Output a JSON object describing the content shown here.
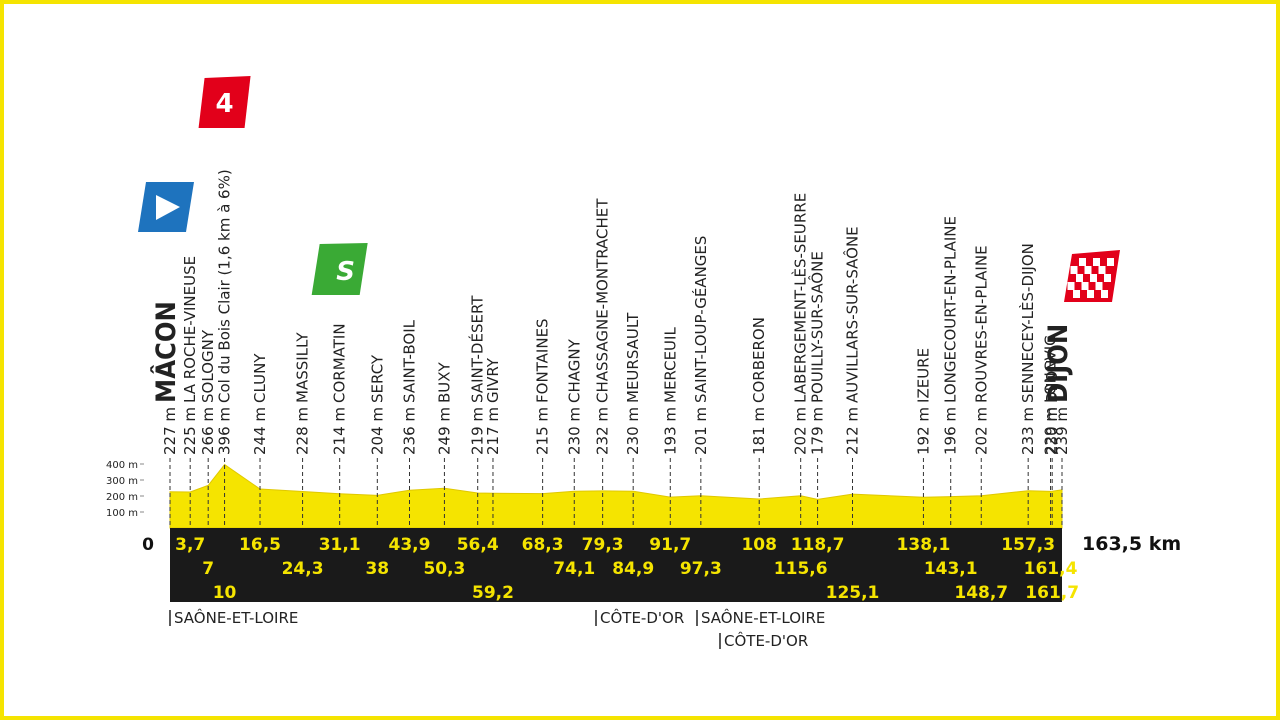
{
  "chart_data": {
    "type": "profile",
    "climb_badge": {
      "km": 10,
      "label": "4"
    },
    "sprint_badge": {
      "km": 31.1,
      "label": "S"
    },
    "ylim": [
      0,
      400
    ],
    "yticks": [
      {
        "value": 100,
        "label": "100 m"
      },
      {
        "value": 200,
        "label": "200 m"
      },
      {
        "value": 300,
        "label": "300 m"
      },
      {
        "value": 400,
        "label": "400 m"
      }
    ],
    "waypoints": [
      {
        "km": 0,
        "km_label": "0",
        "alt": 227,
        "alt_label": "227 m",
        "name": "MÂCON"
      },
      {
        "km": 3.7,
        "km_label": "3,7",
        "alt": 225,
        "alt_label": "225 m",
        "name": "LA ROCHE-VINEUSE"
      },
      {
        "km": 7,
        "km_label": "7",
        "alt": 266,
        "alt_label": "266 m",
        "name": "SOLOGNY"
      },
      {
        "km": 10,
        "km_label": "10",
        "alt": 396,
        "alt_label": "396 m",
        "name": "Col du Bois Clair (1,6 km à 6%)"
      },
      {
        "km": 16.5,
        "km_label": "16,5",
        "alt": 244,
        "alt_label": "244 m",
        "name": "CLUNY"
      },
      {
        "km": 24.3,
        "km_label": "24,3",
        "alt": 228,
        "alt_label": "228 m",
        "name": "MASSILLY"
      },
      {
        "km": 31.1,
        "km_label": "31,1",
        "alt": 214,
        "alt_label": "214 m",
        "name": "CORMATIN"
      },
      {
        "km": 38,
        "km_label": "38",
        "alt": 204,
        "alt_label": "204 m",
        "name": "SERCY"
      },
      {
        "km": 43.9,
        "km_label": "43,9",
        "alt": 236,
        "alt_label": "236 m",
        "name": "SAINT-BOIL"
      },
      {
        "km": 50.3,
        "km_label": "50,3",
        "alt": 249,
        "alt_label": "249 m",
        "name": "BUXY"
      },
      {
        "km": 56.4,
        "km_label": "56,4",
        "alt": 219,
        "alt_label": "219 m",
        "name": "SAINT-DÉSERT"
      },
      {
        "km": 59.2,
        "km_label": "59,2",
        "alt": 217,
        "alt_label": "217 m",
        "name": "GIVRY"
      },
      {
        "km": 68.3,
        "km_label": "68,3",
        "alt": 215,
        "alt_label": "215 m",
        "name": "FONTAINES"
      },
      {
        "km": 74.1,
        "km_label": "74,1",
        "alt": 230,
        "alt_label": "230 m",
        "name": "CHAGNY"
      },
      {
        "km": 79.3,
        "km_label": "79,3",
        "alt": 232,
        "alt_label": "232 m",
        "name": "CHASSAGNE-MONTRACHET"
      },
      {
        "km": 84.9,
        "km_label": "84,9",
        "alt": 230,
        "alt_label": "230 m",
        "name": "MEURSAULT"
      },
      {
        "km": 91.7,
        "km_label": "91,7",
        "alt": 193,
        "alt_label": "193 m",
        "name": "MERCEUIL"
      },
      {
        "km": 97.3,
        "km_label": "97,3",
        "alt": 201,
        "alt_label": "201 m",
        "name": "SAINT-LOUP-GÉANGES"
      },
      {
        "km": 108,
        "km_label": "108",
        "alt": 181,
        "alt_label": "181 m",
        "name": "CORBERON"
      },
      {
        "km": 115.6,
        "km_label": "115,6",
        "alt": 202,
        "alt_label": "202 m",
        "name": "LABERGEMENT-LÈS-SEURRE"
      },
      {
        "km": 118.7,
        "km_label": "118,7",
        "alt": 179,
        "alt_label": "179 m",
        "name": "POUILLY-SUR-SAÔNE"
      },
      {
        "km": 125.1,
        "km_label": "125,1",
        "alt": 212,
        "alt_label": "212 m",
        "name": "AUVILLARS-SUR-SAÔNE"
      },
      {
        "km": 138.1,
        "km_label": "138,1",
        "alt": 192,
        "alt_label": "192 m",
        "name": "IZEURE"
      },
      {
        "km": 143.1,
        "km_label": "143,1",
        "alt": 196,
        "alt_label": "196 m",
        "name": "LONGECOURT-EN-PLAINE"
      },
      {
        "km": 148.7,
        "km_label": "148,7",
        "alt": 202,
        "alt_label": "202 m",
        "name": "ROUVRES-EN-PLAINE"
      },
      {
        "km": 157.3,
        "km_label": "157,3",
        "alt": 233,
        "alt_label": "233 m",
        "name": "SENNECEY-LÈS-DIJON"
      },
      {
        "km": 161.4,
        "km_label": "161,4",
        "alt": 229,
        "alt_label": "229 m",
        "name": "LONGVIC"
      },
      {
        "km": 161.7,
        "km_label": "161,7",
        "alt": 230,
        "alt_label": "230 m",
        "name": "DIJON"
      },
      {
        "km": 163.5,
        "km_label": "163,5 km",
        "alt": 239,
        "alt_label": "239 m",
        "name": "DIJON"
      }
    ],
    "departments": [
      "SAÔNE-ET-LOIRE",
      "CÔTE-D'OR",
      "SAÔNE-ET-LOIRE",
      "CÔTE-D'OR"
    ]
  }
}
